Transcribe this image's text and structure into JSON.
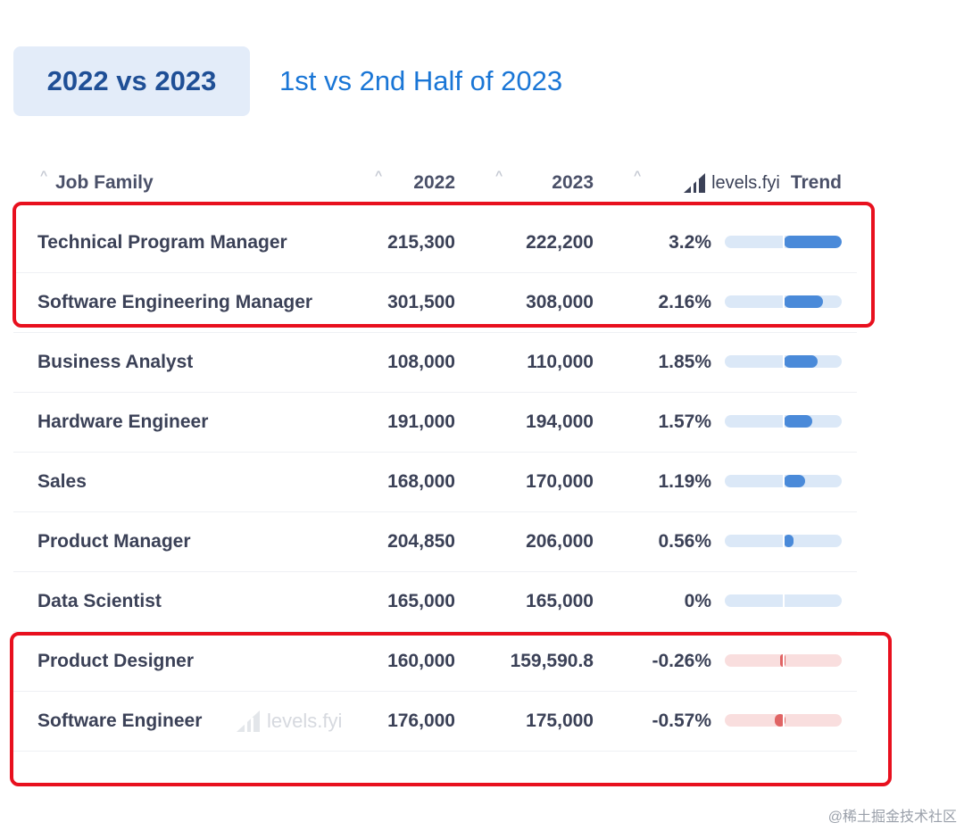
{
  "tabs": {
    "active_label": "2022 vs 2023",
    "inactive_label": "1st vs 2nd Half of 2023"
  },
  "table": {
    "headers": {
      "job_family": "Job Family",
      "col_2022": "2022",
      "col_2023": "2023",
      "brand": "levels.fyi",
      "trend": "Trend"
    },
    "rows": [
      {
        "job": "Technical Program Manager",
        "v2022": "215,300",
        "v2023": "222,200",
        "pct": "3.2%",
        "change": 3.2
      },
      {
        "job": "Software Engineering Manager",
        "v2022": "301,500",
        "v2023": "308,000",
        "pct": "2.16%",
        "change": 2.16
      },
      {
        "job": "Business Analyst",
        "v2022": "108,000",
        "v2023": "110,000",
        "pct": "1.85%",
        "change": 1.85
      },
      {
        "job": "Hardware Engineer",
        "v2022": "191,000",
        "v2023": "194,000",
        "pct": "1.57%",
        "change": 1.57
      },
      {
        "job": "Sales",
        "v2022": "168,000",
        "v2023": "170,000",
        "pct": "1.19%",
        "change": 1.19
      },
      {
        "job": "Product Manager",
        "v2022": "204,850",
        "v2023": "206,000",
        "pct": "0.56%",
        "change": 0.56
      },
      {
        "job": "Data Scientist",
        "v2022": "165,000",
        "v2023": "165,000",
        "pct": "0%",
        "change": 0
      },
      {
        "job": "Product Designer",
        "v2022": "160,000",
        "v2023": "159,590.8",
        "pct": "-0.26%",
        "change": -0.26
      },
      {
        "job": "Software Engineer",
        "v2022": "176,000",
        "v2023": "175,000",
        "pct": "-0.57%",
        "change": -0.57
      }
    ]
  },
  "watermark_text": "levels.fyi",
  "footer_watermark": "@稀土掘金技术社区",
  "colors": {
    "positive": "#4a8ad9",
    "negative": "#e06464",
    "highlight": "#e8101e"
  }
}
